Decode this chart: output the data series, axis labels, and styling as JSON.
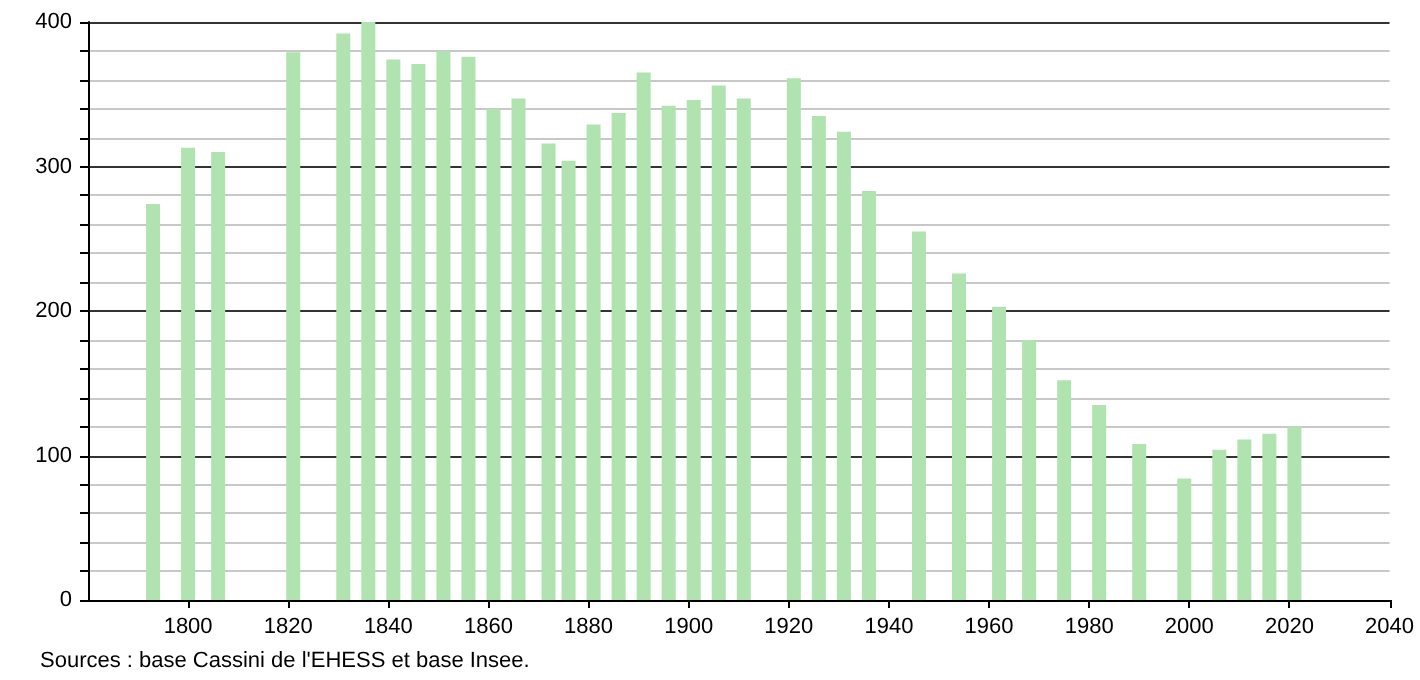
{
  "chart_data": {
    "type": "bar",
    "annotations": [
      "Sources : base Cassini de l'EHESS et base Insee."
    ],
    "x": [
      1793,
      1800,
      1806,
      1821,
      1831,
      1836,
      1841,
      1846,
      1851,
      1856,
      1861,
      1866,
      1872,
      1876,
      1881,
      1886,
      1891,
      1896,
      1901,
      1906,
      1911,
      1921,
      1926,
      1931,
      1936,
      1946,
      1954,
      1962,
      1968,
      1975,
      1982,
      1990,
      1999,
      2006,
      2011,
      2016,
      2021
    ],
    "values": [
      274,
      313,
      310,
      379,
      392,
      400,
      374,
      371,
      380,
      376,
      340,
      347,
      316,
      304,
      329,
      337,
      365,
      342,
      346,
      356,
      347,
      361,
      335,
      324,
      283,
      255,
      226,
      203,
      180,
      152,
      135,
      108,
      84,
      104,
      111,
      115,
      120
    ],
    "color": "#b0e3b0",
    "xlim": [
      1780,
      2040
    ],
    "xticks": [
      1800,
      1820,
      1840,
      1860,
      1880,
      1900,
      1920,
      1940,
      1960,
      1980,
      2000,
      2020,
      2040
    ],
    "ylim": [
      0,
      400
    ],
    "yticks": [
      0,
      {
        "value": 20,
        "label": null
      },
      {
        "value": 40,
        "label": null
      },
      {
        "value": 60,
        "label": null
      },
      {
        "value": 80,
        "label": null
      },
      100,
      {
        "value": 120,
        "label": null
      },
      {
        "value": 140,
        "label": null
      },
      {
        "value": 160,
        "label": null
      },
      {
        "value": 180,
        "label": null
      },
      200,
      {
        "value": 220,
        "label": null
      },
      {
        "value": 240,
        "label": null
      },
      {
        "value": 260,
        "label": null
      },
      {
        "value": 280,
        "label": null
      },
      300,
      {
        "value": 320,
        "label": null
      },
      {
        "value": 340,
        "label": null
      },
      {
        "value": 360,
        "label": null
      },
      {
        "value": 380,
        "label": null
      },
      400
    ],
    "grid": "y"
  }
}
